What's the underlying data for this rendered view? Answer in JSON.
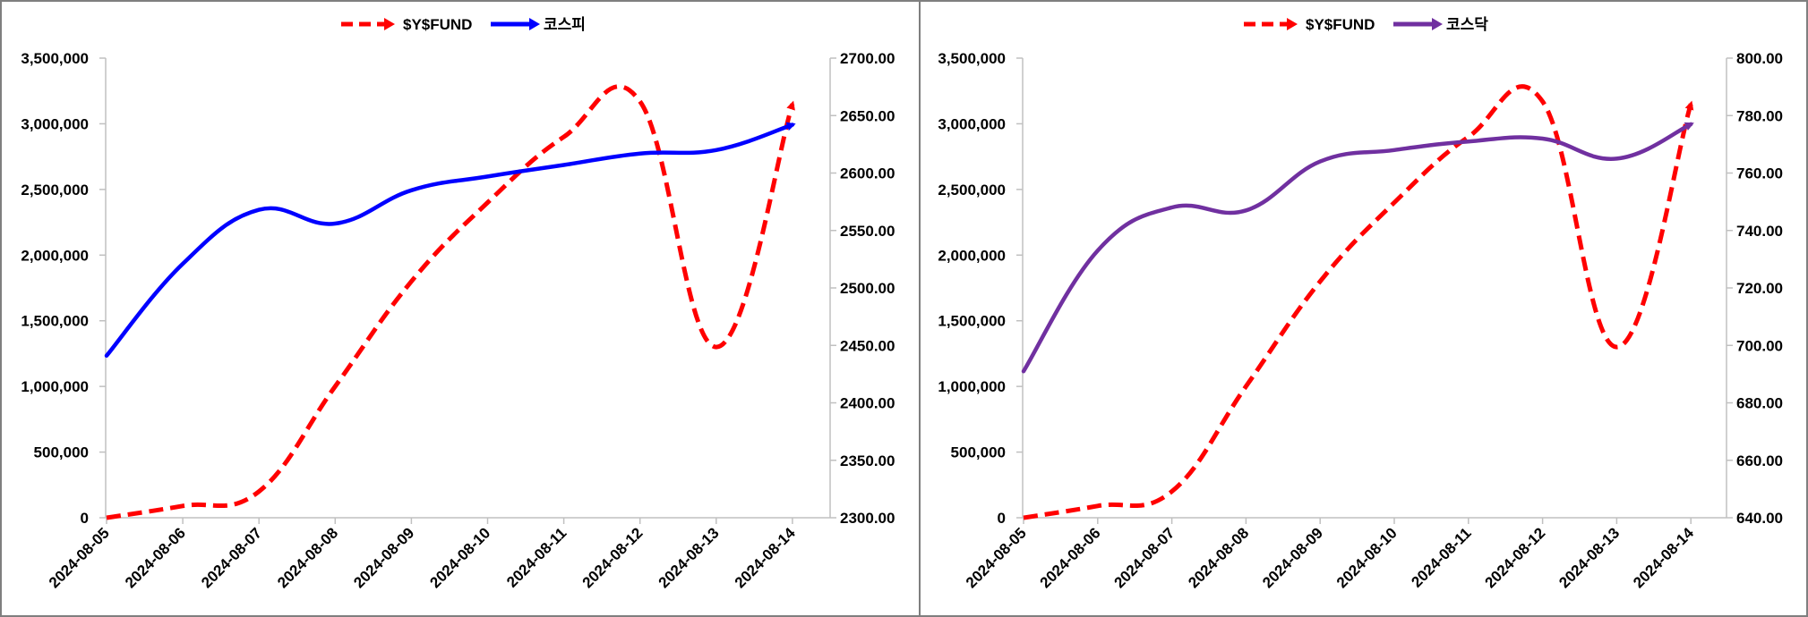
{
  "chart_data": [
    {
      "type": "line",
      "title": "",
      "categories": [
        "2024-08-05",
        "2024-08-06",
        "2024-08-07",
        "2024-08-08",
        "2024-08-09",
        "2024-08-10",
        "2024-08-11",
        "2024-08-12",
        "2024-08-13",
        "2024-08-14"
      ],
      "ylim_left": [
        0,
        3500000
      ],
      "yticks_left": [
        "0",
        "500,000",
        "1,000,000",
        "1,500,000",
        "2,000,000",
        "2,500,000",
        "3,000,000",
        "3,500,000"
      ],
      "ylim_right": [
        2300,
        2700
      ],
      "yticks_right": [
        "2300.00",
        "2350.00",
        "2400.00",
        "2450.00",
        "2500.00",
        "2550.00",
        "2600.00",
        "2650.00",
        "2700.00"
      ],
      "legend_position": "top-center",
      "series": [
        {
          "name": "$Y$FUND",
          "axis": "left",
          "color": "#ff0000",
          "style": "dashed",
          "values": [
            0,
            90000,
            200000,
            1000000,
            1800000,
            2400000,
            2900000,
            3170000,
            1300000,
            3150000
          ]
        },
        {
          "name": "코스피",
          "axis": "right",
          "color": "#0000ff",
          "style": "solid",
          "values": [
            2441,
            2521,
            2568,
            2556,
            2585,
            2597,
            2607,
            2617,
            2620,
            2642
          ]
        }
      ]
    },
    {
      "type": "line",
      "title": "",
      "categories": [
        "2024-08-05",
        "2024-08-06",
        "2024-08-07",
        "2024-08-08",
        "2024-08-09",
        "2024-08-10",
        "2024-08-11",
        "2024-08-12",
        "2024-08-13",
        "2024-08-14"
      ],
      "ylim_left": [
        0,
        3500000
      ],
      "yticks_left": [
        "0",
        "500,000",
        "1,000,000",
        "1,500,000",
        "2,000,000",
        "2,500,000",
        "3,000,000",
        "3,500,000"
      ],
      "ylim_right": [
        640,
        800
      ],
      "yticks_right": [
        "640.00",
        "660.00",
        "680.00",
        "700.00",
        "720.00",
        "740.00",
        "760.00",
        "780.00",
        "800.00"
      ],
      "legend_position": "top-center",
      "series": [
        {
          "name": "$Y$FUND",
          "axis": "left",
          "color": "#ff0000",
          "style": "dashed",
          "values": [
            0,
            90000,
            200000,
            1000000,
            1800000,
            2400000,
            2900000,
            3170000,
            1300000,
            3150000
          ]
        },
        {
          "name": "코스닥",
          "axis": "right",
          "color": "#7030a0",
          "style": "solid",
          "values": [
            691,
            733,
            748,
            747,
            764,
            768,
            771,
            772,
            765,
            777
          ]
        }
      ]
    }
  ]
}
